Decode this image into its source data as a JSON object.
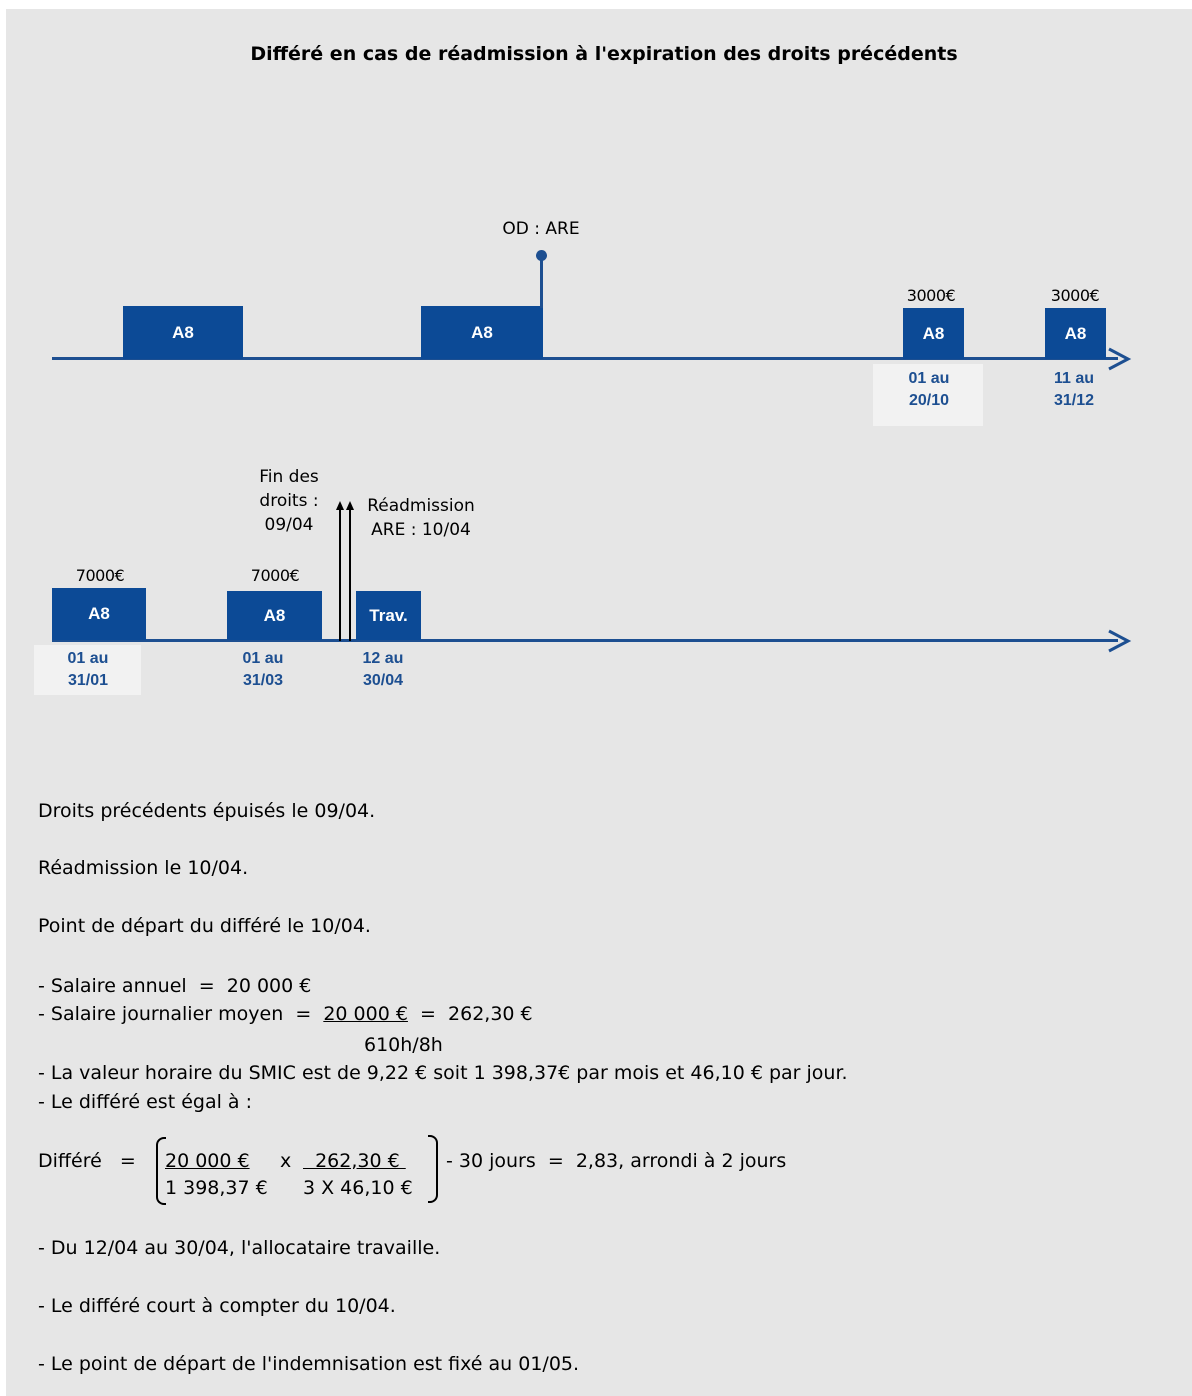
{
  "title": "Différé en cas de réadmission à l'expiration des droits précédents",
  "timeline1": {
    "od_label": "OD : ARE",
    "blocks": [
      {
        "label": "A8"
      },
      {
        "label": "A8"
      },
      {
        "label": "A8",
        "amount": "3000€",
        "dates": [
          "01 au",
          "20/10"
        ]
      },
      {
        "label": "A8",
        "amount": "3000€",
        "dates": [
          "11 au",
          "31/12"
        ]
      }
    ]
  },
  "timeline2": {
    "fin_label": [
      "Fin des",
      "droits :",
      "09/04"
    ],
    "readmission_label": [
      "Réadmission",
      "ARE : 10/04"
    ],
    "blocks": [
      {
        "label": "A8",
        "amount": "7000€",
        "dates": [
          "01 au",
          "31/01"
        ]
      },
      {
        "label": "A8",
        "amount": "7000€",
        "dates": [
          "01 au",
          "31/03"
        ]
      },
      {
        "label": "Trav.",
        "dates": [
          "12 au",
          "30/04"
        ]
      }
    ]
  },
  "text": {
    "p1": "Droits précédents épuisés le 09/04.",
    "p2": "Réadmission le 10/04.",
    "p3": "Point de départ du différé le 10/04.",
    "l1": "- Salaire annuel  =  20 000 €",
    "l2_prefix": "- Salaire journalier moyen  =  ",
    "l2_num": "20 000 €",
    "l2_result": "  =  262,30 €",
    "l2_den": "610h/8h",
    "l3": "- La valeur horaire du SMIC est de 9,22 € soit 1 398,37€ par mois et 46,10 € par jour.",
    "l4": "- Le différé est égal à :",
    "f_label": "Différé   =",
    "f_num1": "20 000 €",
    "f_den1": "1 398,37 €",
    "f_times": "x",
    "f_num2": "  262,30 € ",
    "f_den2": "3 X 46,10 €",
    "f_result": "- 30 jours  =  2,83, arrondi à 2 jours",
    "b1": "- Du 12/04 au 30/04, l'allocataire travaille.",
    "b2": "- Le différé court à compter du 10/04.",
    "b3": "- Le point de départ de l'indemnisation est fixé au 01/05."
  },
  "colors": {
    "timeline": "#1d4f91",
    "block": "#0c4a96",
    "panel": "#e6e6e6"
  }
}
